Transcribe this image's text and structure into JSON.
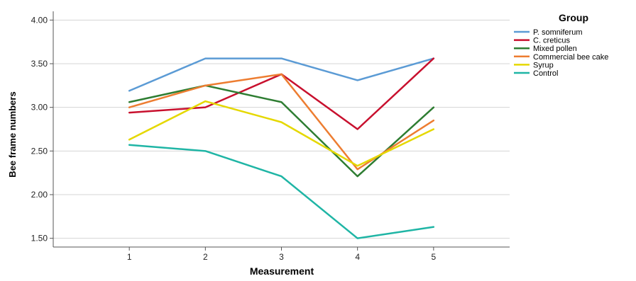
{
  "chart_data": {
    "type": "line",
    "xlabel": "Measurement",
    "ylabel": "Bee frame numbers",
    "x": [
      1,
      2,
      3,
      4,
      5
    ],
    "x_tick_labels": [
      "1",
      "2",
      "3",
      "4",
      "5"
    ],
    "xlim": [
      0,
      6
    ],
    "ylim": [
      1.4,
      4.1
    ],
    "y_ticks": [
      1.5,
      2.0,
      2.5,
      3.0,
      3.5,
      4.0
    ],
    "y_tick_labels": [
      "1.50",
      "2.00",
      "2.50",
      "3.00",
      "3.50",
      "4.00"
    ],
    "grid": "horizontal",
    "legend": {
      "title": "Group",
      "placement": "top-right"
    },
    "series": [
      {
        "name": "P. somniferum",
        "color": "#5b9bd5",
        "values": [
          3.19,
          3.56,
          3.56,
          3.31,
          3.56
        ]
      },
      {
        "name": "C. creticus",
        "color": "#c8102e",
        "values": [
          2.94,
          3.0,
          3.38,
          2.75,
          3.56
        ]
      },
      {
        "name": "Mixed pollen",
        "color": "#2e7d32",
        "values": [
          3.06,
          3.25,
          3.06,
          2.21,
          3.0
        ]
      },
      {
        "name": "Commercial bee cake",
        "color": "#ed7d31",
        "values": [
          3.0,
          3.25,
          3.38,
          2.29,
          2.85
        ]
      },
      {
        "name": "Syrup",
        "color": "#e5d800",
        "values": [
          2.63,
          3.07,
          2.83,
          2.33,
          2.75
        ]
      },
      {
        "name": "Control",
        "color": "#1fb5a5",
        "values": [
          2.57,
          2.5,
          2.21,
          1.5,
          1.63
        ]
      }
    ]
  }
}
